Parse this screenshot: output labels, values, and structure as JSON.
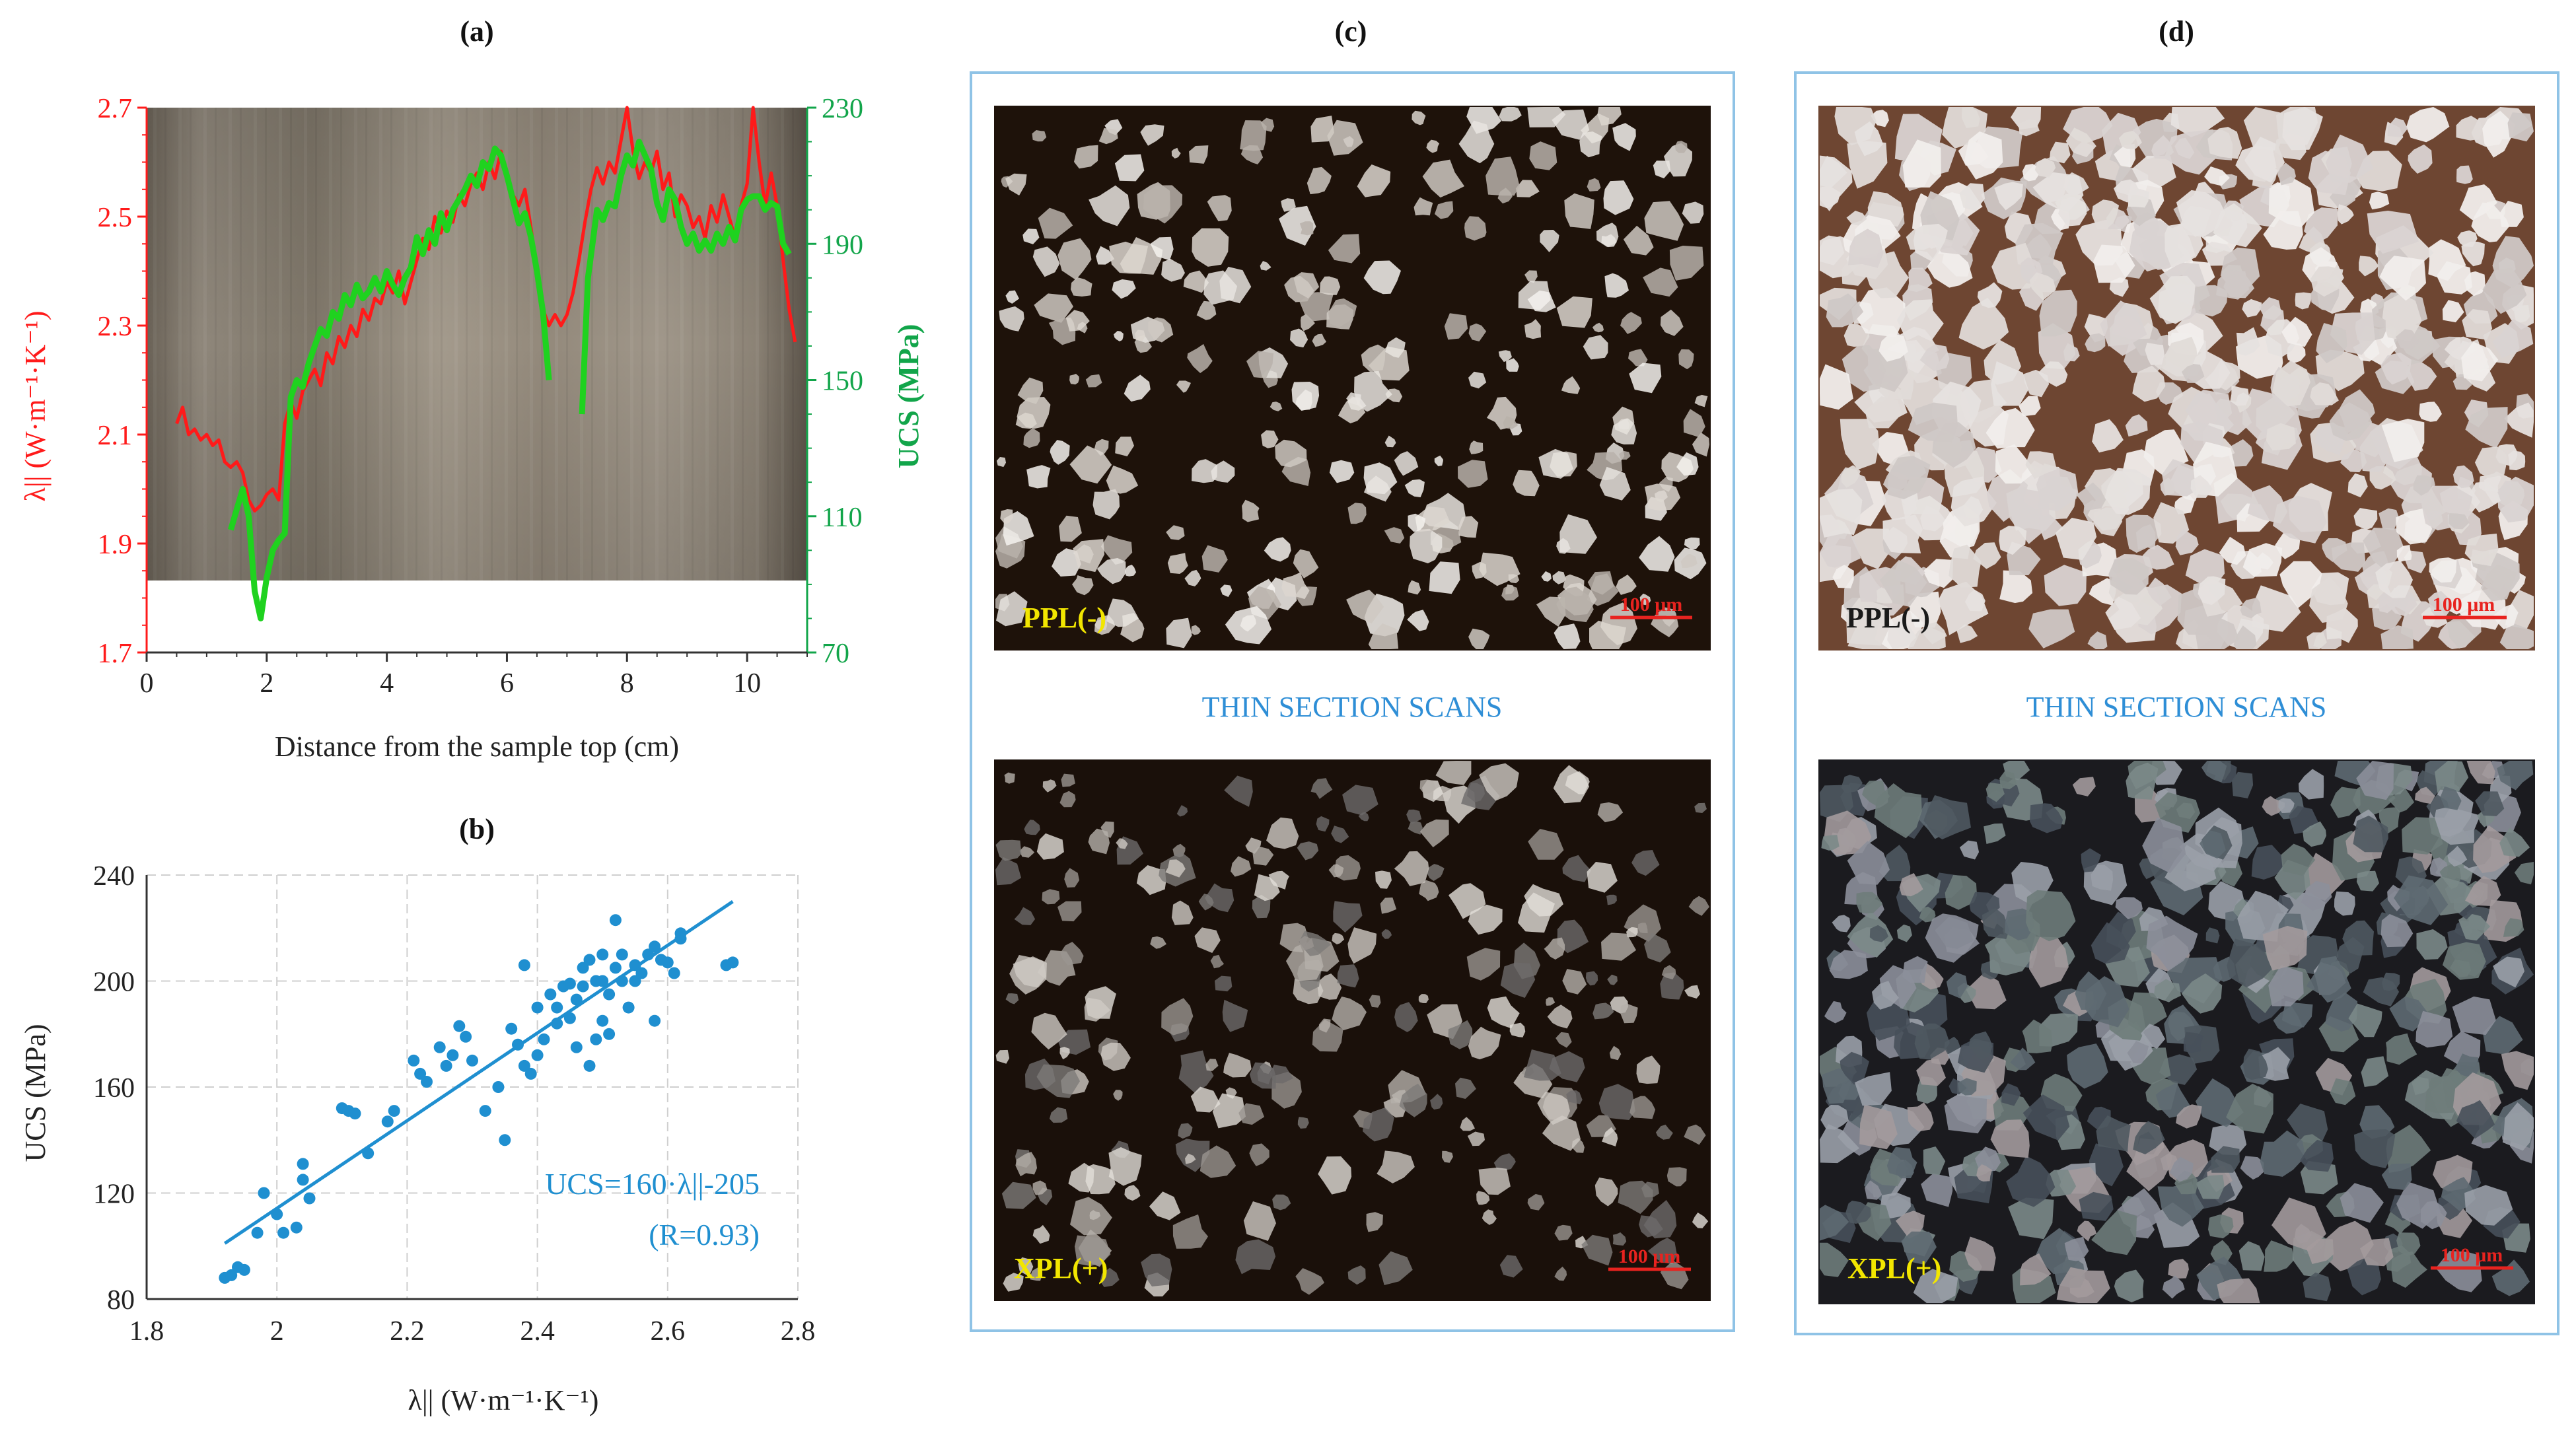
{
  "panels": {
    "a": {
      "label": "(a)"
    },
    "b": {
      "label": "(b)"
    },
    "c": {
      "label": "(c)",
      "caption": "THIN SECTION SCANS",
      "top_tag": "PPL(-)",
      "bottom_tag": "XPL(+)",
      "scale": "100 μm"
    },
    "d": {
      "label": "(d)",
      "caption": "THIN SECTION SCANS",
      "top_tag": "PPL(-)",
      "bottom_tag": "XPL(+)",
      "scale": "100 μm"
    }
  },
  "colors": {
    "red": "#ff1a1a",
    "green": "#1fd21f",
    "green_axis": "#12a54a",
    "blue": "#1f8fd0",
    "caption_blue": "#2e8ed6",
    "tag_yellow": "#f2e600",
    "scale_red": "#e8231f",
    "box_border": "#8fc3e6"
  },
  "chart_data": [
    {
      "type": "line",
      "xlabel": "Distance from the sample top (cm)",
      "ylabel": "λ|| (W·m⁻¹·K⁻¹)",
      "y2label": "UCS (MPa)",
      "xlim": [
        0,
        11
      ],
      "ylim": [
        1.7,
        2.7
      ],
      "y2lim": [
        70,
        230
      ],
      "xticks": [
        "0",
        "2",
        "4",
        "6",
        "8",
        "10"
      ],
      "yticks": [
        "1.7",
        "1.9",
        "2.1",
        "2.3",
        "2.5",
        "2.7"
      ],
      "y2ticks": [
        "70",
        "110",
        "150",
        "190",
        "230"
      ],
      "grid": false,
      "background": "core photograph",
      "series": [
        {
          "axis": "left",
          "color": "#ff1a1a",
          "x": [
            0.5,
            0.6,
            0.7,
            0.8,
            0.9,
            1.0,
            1.1,
            1.2,
            1.3,
            1.4,
            1.5,
            1.6,
            1.7,
            1.8,
            1.9,
            2.0,
            2.1,
            2.2,
            2.3,
            2.4,
            2.5,
            2.6,
            2.7,
            2.8,
            2.9,
            3.0,
            3.1,
            3.2,
            3.3,
            3.4,
            3.5,
            3.6,
            3.7,
            3.8,
            3.9,
            4.0,
            4.1,
            4.2,
            4.3,
            4.4,
            4.5,
            4.6,
            4.7,
            4.8,
            4.9,
            5.0,
            5.1,
            5.2,
            5.3,
            5.4,
            5.5,
            5.6,
            5.7,
            5.8,
            5.9,
            6.0,
            6.1,
            6.2,
            6.3,
            6.4,
            6.5,
            6.6,
            6.7,
            6.8,
            6.9,
            7.0,
            7.1,
            7.2,
            7.3,
            7.4,
            7.5,
            7.6,
            7.7,
            7.8,
            7.9,
            8.0,
            8.1,
            8.2,
            8.3,
            8.4,
            8.5,
            8.6,
            8.7,
            8.8,
            8.9,
            9.0,
            9.1,
            9.2,
            9.3,
            9.4,
            9.5,
            9.6,
            9.7,
            9.8,
            9.9,
            10.0,
            10.1,
            10.2,
            10.3,
            10.4,
            10.5,
            10.6,
            10.7,
            10.8
          ],
          "y": [
            2.12,
            2.15,
            2.1,
            2.11,
            2.09,
            2.1,
            2.08,
            2.09,
            2.05,
            2.04,
            2.05,
            2.03,
            1.98,
            1.96,
            1.97,
            1.99,
            2.0,
            1.98,
            2.12,
            2.16,
            2.13,
            2.18,
            2.2,
            2.22,
            2.19,
            2.25,
            2.23,
            2.28,
            2.26,
            2.3,
            2.28,
            2.33,
            2.31,
            2.35,
            2.34,
            2.38,
            2.36,
            2.4,
            2.34,
            2.38,
            2.42,
            2.46,
            2.44,
            2.5,
            2.47,
            2.51,
            2.49,
            2.54,
            2.52,
            2.56,
            2.58,
            2.55,
            2.6,
            2.57,
            2.62,
            2.58,
            2.54,
            2.52,
            2.55,
            2.48,
            2.4,
            2.33,
            2.3,
            2.32,
            2.3,
            2.32,
            2.36,
            2.42,
            2.49,
            2.55,
            2.59,
            2.56,
            2.6,
            2.58,
            2.64,
            2.7,
            2.62,
            2.57,
            2.6,
            2.58,
            2.62,
            2.55,
            2.58,
            2.5,
            2.54,
            2.52,
            2.48,
            2.5,
            2.46,
            2.52,
            2.49,
            2.54,
            2.5,
            2.46,
            2.52,
            2.56,
            2.7,
            2.6,
            2.52,
            2.58,
            2.52,
            2.42,
            2.33,
            2.27
          ]
        },
        {
          "axis": "right",
          "color": "#1fd21f",
          "x": [
            1.4,
            1.5,
            1.6,
            1.7,
            1.8,
            1.9,
            2.0,
            2.1,
            2.2,
            2.3,
            2.4,
            2.5,
            2.6,
            2.7,
            2.8,
            2.9,
            3.0,
            3.1,
            3.2,
            3.3,
            3.4,
            3.5,
            3.6,
            3.7,
            3.8,
            3.9,
            4.0,
            4.1,
            4.2,
            4.3,
            4.4,
            4.5,
            4.6,
            4.7,
            4.8,
            4.9,
            5.0,
            5.1,
            5.2,
            5.3,
            5.4,
            5.5,
            5.6,
            5.7,
            5.8,
            5.9,
            6.0,
            6.1,
            6.2,
            6.3,
            6.4,
            6.5,
            6.6,
            6.7,
            7.25,
            7.35,
            7.5,
            7.6,
            7.7,
            7.8,
            7.9,
            8.0,
            8.1,
            8.2,
            8.3,
            8.4,
            8.5,
            8.6,
            8.7,
            8.8,
            8.9,
            9.0,
            9.1,
            9.2,
            9.3,
            9.4,
            9.5,
            9.6,
            9.7,
            9.8,
            9.9,
            10.0,
            10.1,
            10.2,
            10.3,
            10.4,
            10.5,
            10.6,
            10.7
          ],
          "y": [
            106,
            112,
            118,
            110,
            88,
            80,
            92,
            100,
            103,
            105,
            145,
            150,
            148,
            155,
            160,
            165,
            163,
            170,
            168,
            175,
            172,
            178,
            174,
            176,
            180,
            176,
            182,
            178,
            175,
            180,
            183,
            192,
            187,
            194,
            190,
            199,
            194,
            200,
            203,
            206,
            210,
            207,
            214,
            212,
            218,
            216,
            210,
            203,
            196,
            199,
            192,
            182,
            170,
            150,
            140,
            180,
            200,
            197,
            202,
            201,
            210,
            216,
            213,
            220,
            216,
            212,
            202,
            197,
            206,
            203,
            195,
            190,
            193,
            188,
            191,
            188,
            193,
            190,
            195,
            191,
            200,
            203,
            204,
            204,
            200,
            202,
            201,
            190,
            187
          ]
        }
      ]
    },
    {
      "type": "scatter",
      "xlabel": "λ|| (W·m⁻¹·K⁻¹)",
      "ylabel": "UCS (MPa)",
      "xlim": [
        1.8,
        2.8
      ],
      "ylim": [
        80,
        240
      ],
      "xticks": [
        "1.8",
        "2",
        "2.2",
        "2.4",
        "2.6",
        "2.8"
      ],
      "yticks": [
        "80",
        "120",
        "160",
        "200",
        "240"
      ],
      "grid": true,
      "annotation_eq": "UCS=160·λ||-205",
      "annotation_r": "(R=0.93)",
      "fit_line": {
        "x": [
          1.92,
          2.7
        ],
        "y": [
          101,
          230
        ]
      },
      "series": [
        {
          "color": "#1f8fd0",
          "points": [
            [
              1.92,
              88
            ],
            [
              1.93,
              89
            ],
            [
              1.94,
              92
            ],
            [
              1.95,
              91
            ],
            [
              1.97,
              105
            ],
            [
              1.98,
              120
            ],
            [
              2.0,
              112
            ],
            [
              2.01,
              105
            ],
            [
              2.03,
              107
            ],
            [
              2.04,
              125
            ],
            [
              2.04,
              131
            ],
            [
              2.05,
              118
            ],
            [
              2.1,
              152
            ],
            [
              2.11,
              151
            ],
            [
              2.12,
              150
            ],
            [
              2.14,
              135
            ],
            [
              2.17,
              147
            ],
            [
              2.18,
              151
            ],
            [
              2.21,
              170
            ],
            [
              2.22,
              165
            ],
            [
              2.23,
              162
            ],
            [
              2.25,
              175
            ],
            [
              2.26,
              168
            ],
            [
              2.27,
              172
            ],
            [
              2.28,
              183
            ],
            [
              2.29,
              179
            ],
            [
              2.3,
              170
            ],
            [
              2.32,
              151
            ],
            [
              2.34,
              160
            ],
            [
              2.35,
              140
            ],
            [
              2.36,
              182
            ],
            [
              2.37,
              176
            ],
            [
              2.38,
              168
            ],
            [
              2.38,
              206
            ],
            [
              2.39,
              165
            ],
            [
              2.4,
              190
            ],
            [
              2.4,
              172
            ],
            [
              2.41,
              178
            ],
            [
              2.42,
              195
            ],
            [
              2.43,
              190
            ],
            [
              2.43,
              184
            ],
            [
              2.44,
              198
            ],
            [
              2.45,
              199
            ],
            [
              2.45,
              186
            ],
            [
              2.46,
              193
            ],
            [
              2.46,
              175
            ],
            [
              2.47,
              205
            ],
            [
              2.47,
              198
            ],
            [
              2.48,
              208
            ],
            [
              2.48,
              168
            ],
            [
              2.49,
              200
            ],
            [
              2.49,
              178
            ],
            [
              2.5,
              210
            ],
            [
              2.5,
              200
            ],
            [
              2.5,
              185
            ],
            [
              2.51,
              195
            ],
            [
              2.51,
              180
            ],
            [
              2.52,
              223
            ],
            [
              2.52,
              205
            ],
            [
              2.53,
              200
            ],
            [
              2.53,
              210
            ],
            [
              2.54,
              190
            ],
            [
              2.55,
              200
            ],
            [
              2.55,
              206
            ],
            [
              2.56,
              203
            ],
            [
              2.57,
              210
            ],
            [
              2.58,
              213
            ],
            [
              2.58,
              185
            ],
            [
              2.59,
              208
            ],
            [
              2.6,
              207
            ],
            [
              2.61,
              203
            ],
            [
              2.62,
              216
            ],
            [
              2.62,
              218
            ],
            [
              2.69,
              206
            ],
            [
              2.7,
              207
            ]
          ]
        }
      ]
    }
  ]
}
